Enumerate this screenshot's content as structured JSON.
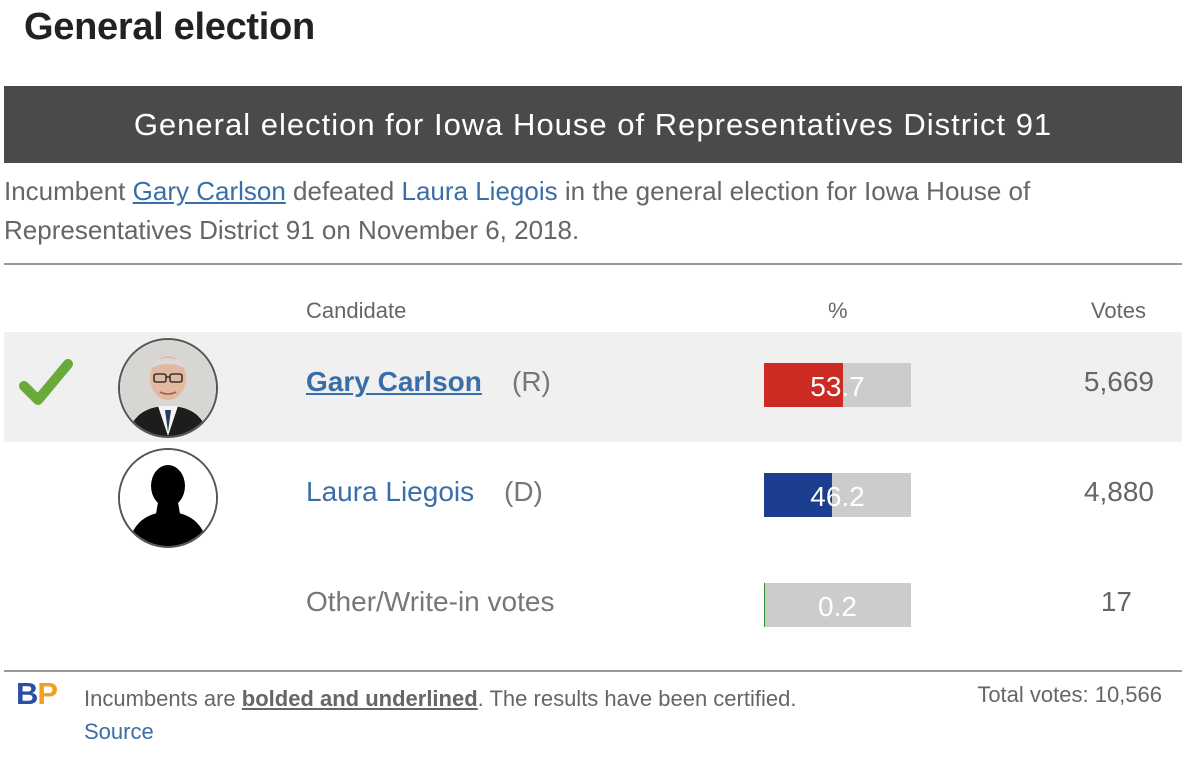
{
  "section_title": "General election",
  "race": {
    "header": "General election for Iowa House of Representatives District 91",
    "summary": {
      "prefix": "Incumbent",
      "winner": "Gary Carlson",
      "verb": "defeated",
      "loser": "Laura Liegois",
      "suffix": "in the general election for Iowa House of Representatives District 91 on November 6, 2018."
    }
  },
  "table": {
    "headers": {
      "candidate": "Candidate",
      "percent": "%",
      "votes": "Votes"
    },
    "rows": [
      {
        "name": "Gary Carlson",
        "party": "(R)",
        "percent_label": "53.7",
        "percent": 53.7,
        "votes": "5,669",
        "bar_color": "#cc2b24",
        "winner": true,
        "incumbent": true
      },
      {
        "name": "Laura Liegois",
        "party": "(D)",
        "percent_label": "46.2",
        "percent": 46.2,
        "votes": "4,880",
        "bar_color": "#1b3e8f",
        "winner": false,
        "incumbent": false
      },
      {
        "name": "Other/Write-in votes",
        "party": "",
        "percent_label": "0.2",
        "percent": 0.2,
        "votes": "17",
        "bar_color": "#2e8b2e",
        "winner": false,
        "incumbent": false
      }
    ]
  },
  "footer": {
    "logo_b": "B",
    "logo_p": "P",
    "note_prefix": "Incumbents are",
    "note_style": "bolded and underlined",
    "note_suffix": ". The results have been certified.",
    "source_label": "Source",
    "total_votes": "Total votes: 10,566"
  },
  "colors": {
    "header_bg": "#4a4a4a",
    "link": "#3a6ea8",
    "check_green": "#6aaa3a",
    "bar_track": "#cccccc",
    "logo_blue": "#2b4fa3",
    "logo_orange": "#f0a020"
  },
  "icons": {
    "winner_check": "checkmark-icon",
    "photo": "candidate-photo",
    "placeholder": "silhouette-icon"
  }
}
